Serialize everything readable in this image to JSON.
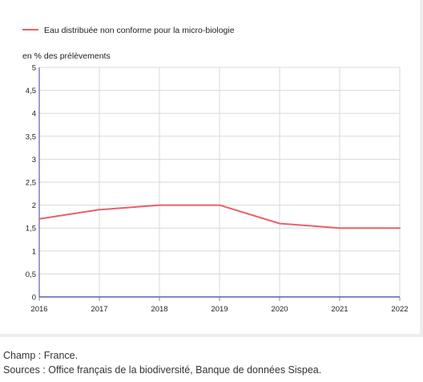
{
  "chart_data": {
    "type": "line",
    "legend": {
      "position": "top-left",
      "entries": [
        "Eau distribuée non conforme pour la micro-biologie"
      ]
    },
    "ylabel": "en % des prélèvements",
    "xlabel": "",
    "x": [
      "2016",
      "2017",
      "2018",
      "2019",
      "2020",
      "2021",
      "2022"
    ],
    "series": [
      {
        "name": "Eau distribuée non conforme pour la micro-biologie",
        "color": "#e8606a",
        "values": [
          1.7,
          1.9,
          2.0,
          2.0,
          1.6,
          1.5,
          1.5
        ]
      }
    ],
    "ylim": [
      0,
      5
    ],
    "yticks": [
      "0",
      "0,5",
      "1",
      "1,5",
      "2",
      "2,5",
      "3",
      "3,5",
      "4",
      "4,5",
      "5"
    ],
    "grid": true,
    "axis_color": "#5b5fb0"
  },
  "notes": {
    "champ": "Champ : France.",
    "sources": "Sources : Office français de la biodiversité, Banque de données Sispea."
  }
}
